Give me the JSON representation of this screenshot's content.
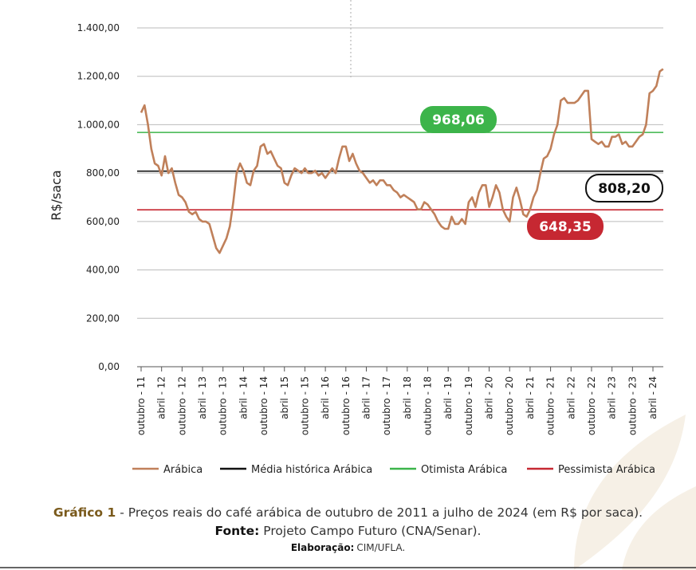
{
  "chart_data": {
    "type": "line",
    "y_axis_label": "R$/saca",
    "categories": [
      "outubro - 11",
      null,
      null,
      null,
      null,
      null,
      "abril - 12",
      null,
      null,
      null,
      null,
      null,
      "outubro - 12",
      null,
      null,
      null,
      null,
      null,
      "abril - 13",
      null,
      null,
      null,
      null,
      null,
      "outubro - 13",
      null,
      null,
      null,
      null,
      null,
      "abril - 14",
      null,
      null,
      null,
      null,
      null,
      "outubro - 14",
      null,
      null,
      null,
      null,
      null,
      "abril - 15",
      null,
      null,
      null,
      null,
      null,
      "outubro - 15",
      null,
      null,
      null,
      null,
      null,
      "abril - 16",
      null,
      null,
      null,
      null,
      null,
      "outubro - 16",
      null,
      null,
      null,
      null,
      null,
      "abril - 17",
      null,
      null,
      null,
      null,
      null,
      "outubro - 17",
      null,
      null,
      null,
      null,
      null,
      "abril - 18",
      null,
      null,
      null,
      null,
      null,
      "outubro - 18",
      null,
      null,
      null,
      null,
      null,
      "abril - 19",
      null,
      null,
      null,
      null,
      null,
      "outubro - 19",
      null,
      null,
      null,
      null,
      null,
      "abril - 20",
      null,
      null,
      null,
      null,
      null,
      "outubro - 20",
      null,
      null,
      null,
      null,
      null,
      "abril - 21",
      null,
      null,
      null,
      null,
      null,
      "outubro - 21",
      null,
      null,
      null,
      null,
      null,
      "abril - 22",
      null,
      null,
      null,
      null,
      null,
      "outubro - 22",
      null,
      null,
      null,
      null,
      null,
      "abril - 23",
      null,
      null,
      null,
      null,
      null,
      "outubro - 23",
      null,
      null,
      null,
      null,
      null,
      "abril - 24",
      null,
      null,
      null
    ],
    "series": [
      {
        "name": "Arábica",
        "color": "#c0805a",
        "values": [
          1050,
          1080,
          1000,
          900,
          840,
          830,
          790,
          870,
          800,
          820,
          760,
          710,
          700,
          680,
          640,
          630,
          640,
          610,
          600,
          600,
          590,
          540,
          490,
          470,
          500,
          530,
          580,
          680,
          800,
          840,
          810,
          760,
          750,
          810,
          830,
          910,
          920,
          880,
          890,
          860,
          830,
          820,
          760,
          750,
          790,
          820,
          810,
          800,
          820,
          800,
          800,
          810,
          790,
          800,
          780,
          800,
          820,
          800,
          860,
          910,
          910,
          850,
          880,
          840,
          810,
          800,
          780,
          760,
          770,
          750,
          770,
          770,
          750,
          750,
          730,
          720,
          700,
          710,
          700,
          690,
          680,
          650,
          650,
          680,
          670,
          650,
          630,
          600,
          580,
          570,
          570,
          620,
          590,
          590,
          610,
          590,
          680,
          700,
          660,
          720,
          750,
          750,
          660,
          700,
          750,
          720,
          650,
          620,
          600,
          700,
          740,
          690,
          630,
          620,
          650,
          700,
          730,
          800,
          860,
          870,
          900,
          960,
          1000,
          1100,
          1110,
          1090,
          1090,
          1090,
          1100,
          1120,
          1140,
          1140,
          940,
          930,
          920,
          930,
          910,
          910,
          950,
          950,
          960,
          920,
          930,
          910,
          910,
          930,
          950,
          960,
          1000,
          1130,
          1140,
          1160,
          1220,
          1230
        ]
      }
    ],
    "reference_lines": [
      {
        "name": "Média histórica Arábica",
        "value": 808.2,
        "value_label": "808,20",
        "color": "#111111"
      },
      {
        "name": "Otimista Arábica",
        "value": 968.06,
        "value_label": "968,06",
        "color": "#3cb44a"
      },
      {
        "name": "Pessimista Arábica",
        "value": 648.35,
        "value_label": "648,35",
        "color": "#c62832"
      }
    ],
    "ylim": [
      0,
      1400
    ],
    "yticks": [
      {
        "value": 0,
        "label": "0,00"
      },
      {
        "value": 200,
        "label": "200,00"
      },
      {
        "value": 400,
        "label": "400,00"
      },
      {
        "value": 600,
        "label": "600,00"
      },
      {
        "value": 800,
        "label": "800,00"
      },
      {
        "value": 1000,
        "label": "1.000,00"
      },
      {
        "value": 1200,
        "label": "1.200,00"
      },
      {
        "value": 1400,
        "label": "1.400,00"
      }
    ],
    "grid": true,
    "legend": "bottom"
  },
  "caption": {
    "label": "Gráfico 1",
    "text": "- Preços reais do café arábica de outubro de 2011 a julho de 2024 (em R$ por saca).",
    "source_label": "Fonte:",
    "source": "Projeto Campo Futuro (CNA/Senar).",
    "credit_label": "Elaboração:",
    "credit": "CIM/UFLA."
  }
}
